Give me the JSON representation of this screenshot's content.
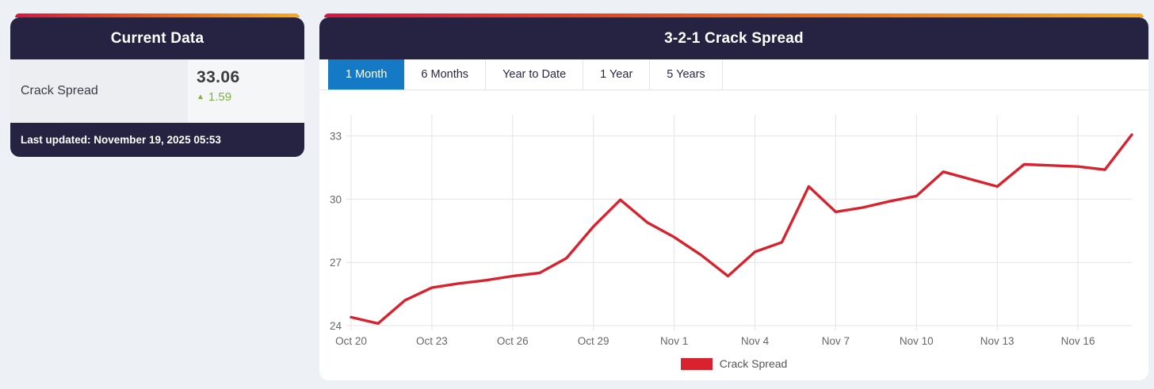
{
  "theme": {
    "page_bg": "#edf0f4",
    "header_bg": "#252242",
    "gradient_stops": [
      "#dc1441",
      "#e8481f",
      "#f07c12",
      "#f9a91a"
    ],
    "active_tab_blue": "#157ac6",
    "line_red": "#d8232f",
    "change_green": "#7cb342"
  },
  "current_data_card": {
    "title": "Current Data",
    "metric_label": "Crack Spread",
    "metric_value": "33.06",
    "metric_change": "1.59",
    "change_direction": "up",
    "up_arrow_icon": "▲",
    "last_updated": "Last updated: November 19, 2025 05:53"
  },
  "chart_card": {
    "title": "3-2-1 Crack Spread",
    "tabs": [
      {
        "label": "1 Month",
        "active": true
      },
      {
        "label": "6 Months",
        "active": false
      },
      {
        "label": "Year to Date",
        "active": false
      },
      {
        "label": "1 Year",
        "active": false
      },
      {
        "label": "5 Years",
        "active": false
      }
    ],
    "legend": {
      "label": "Crack Spread",
      "swatch_color": "#d8232f"
    }
  },
  "chart_data": {
    "type": "line",
    "title": "3-2-1 Crack Spread",
    "x": [
      "Oct 20",
      "Oct 21",
      "Oct 22",
      "Oct 23",
      "Oct 24",
      "Oct 25",
      "Oct 26",
      "Oct 27",
      "Oct 28",
      "Oct 29",
      "Oct 30",
      "Oct 31",
      "Nov 1",
      "Nov 2",
      "Nov 3",
      "Nov 4",
      "Nov 5",
      "Nov 6",
      "Nov 7",
      "Nov 8",
      "Nov 9",
      "Nov 10",
      "Nov 11",
      "Nov 12",
      "Nov 13",
      "Nov 14",
      "Nov 15",
      "Nov 16",
      "Nov 17",
      "Nov 18"
    ],
    "series": [
      {
        "name": "Crack Spread",
        "color": "#d8232f",
        "values": [
          24.4,
          24.1,
          25.2,
          25.8,
          26.0,
          26.15,
          26.35,
          26.5,
          27.2,
          28.7,
          29.97,
          28.9,
          28.2,
          27.35,
          26.35,
          27.5,
          27.95,
          30.6,
          29.4,
          29.6,
          29.9,
          30.15,
          31.3,
          30.95,
          30.6,
          31.65,
          31.6,
          31.55,
          31.4,
          33.06
        ]
      }
    ],
    "x_tick_every": 3,
    "x_tick_labels": [
      "Oct 20",
      "Oct 23",
      "Oct 26",
      "Oct 29",
      "Nov 1",
      "Nov 4",
      "Nov 7",
      "Nov 10",
      "Nov 13",
      "Nov 16"
    ],
    "y_ticks": [
      24,
      27,
      30,
      33
    ],
    "ylim": [
      24,
      34
    ],
    "grid": true,
    "legend_position": "bottom"
  }
}
